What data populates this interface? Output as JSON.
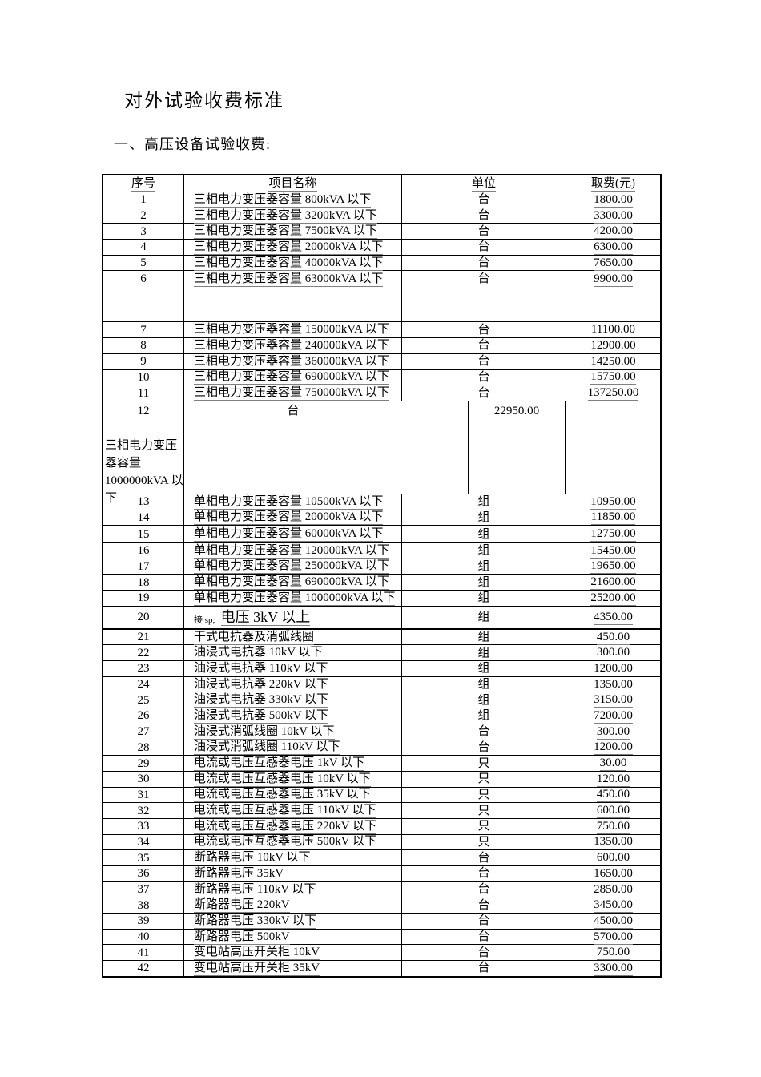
{
  "document": {
    "title": "对外试验收费标准",
    "section_heading": "一、高压设备试验收费:"
  },
  "table": {
    "headers": {
      "no": "序号",
      "name": "项目名称",
      "unit": "单位",
      "fee": "取费(元)"
    },
    "rows": [
      {
        "no": "1",
        "name": "三相电力变压器容量 800kVA 以下",
        "unit": "台",
        "fee": "1800.00"
      },
      {
        "no": "2",
        "name": "三相电力变压器容量 3200kVA 以下",
        "unit": "台",
        "fee": "3300.00"
      },
      {
        "no": "3",
        "name": "三相电力变压器容量 7500kVA 以下",
        "unit": "台",
        "fee": "4200.00"
      },
      {
        "no": "4",
        "name": "三相电力变压器容量 20000kVA 以下",
        "unit": "台",
        "fee": "6300.00"
      },
      {
        "no": "5",
        "name": "三相电力变压器容量 40000kVA 以下",
        "unit": "台",
        "fee": "7650.00"
      },
      {
        "no": "6",
        "name": "三相电力变压器容量 63000kVA 以下",
        "unit": "台",
        "fee": "9900.00"
      },
      {
        "no": "7",
        "name": "三相电力变压器容量 150000kVA 以下",
        "unit": "台",
        "fee": "11100.00"
      },
      {
        "no": "8",
        "name": "三相电力变压器容量 240000kVA 以下",
        "unit": "台",
        "fee": "12900.00"
      },
      {
        "no": "9",
        "name": "三相电力变压器容量 360000kVA 以下",
        "unit": "台",
        "fee": "14250.00"
      },
      {
        "no": "10",
        "name": "三相电力变压器容量 690000kVA 以下",
        "unit": "台",
        "fee": "15750.00"
      },
      {
        "no": "11",
        "name": "三相电力变压器容量 750000kVA 以下",
        "unit": "台",
        "fee": "137250.00"
      },
      {
        "no": "12",
        "name": "三相电力变压器容量 1000000kVA 以下",
        "unit": "台",
        "fee": "22950.00"
      },
      {
        "no": "13",
        "name": "单相电力变压器容量 10500kVA 以下",
        "unit": "组",
        "fee": "10950.00"
      },
      {
        "no": "14",
        "name": "单相电力变压器容量 20000kVA 以下",
        "unit": "组",
        "fee": "11850.00"
      },
      {
        "no": "15",
        "name": "单相电力变压器容量 60000kVA 以下",
        "unit": "组",
        "fee": "12750.00"
      },
      {
        "no": "16",
        "name": "单相电力变压器容量 120000kVA 以下",
        "unit": "组",
        "fee": "15450.00"
      },
      {
        "no": "17",
        "name": "单相电力变压器容量 250000kVA 以下",
        "unit": "组",
        "fee": "19650.00"
      },
      {
        "no": "18",
        "name": "单相电力变压器容量 690000kVA 以下",
        "unit": "组",
        "fee": "21600.00"
      },
      {
        "no": "19",
        "name": "单相电力变压器容量 1000000kVA 以下",
        "unit": "组",
        "fee": "25200.00"
      },
      {
        "no": "20",
        "name_prefix": "接 sp;",
        "name": "电压 3kV 以上",
        "unit": "组",
        "fee": "4350.00"
      },
      {
        "no": "21",
        "name": "干式电抗器及消弧线圈",
        "unit": "组",
        "fee": "450.00"
      },
      {
        "no": "22",
        "name": "油浸式电抗器 10kV 以下",
        "unit": "组",
        "fee": "300.00"
      },
      {
        "no": "23",
        "name": "油浸式电抗器 110kV 以下",
        "unit": "组",
        "fee": "1200.00"
      },
      {
        "no": "24",
        "name": "油浸式电抗器 220kV 以下",
        "unit": "组",
        "fee": "1350.00"
      },
      {
        "no": "25",
        "name": "油浸式电抗器 330kV 以下",
        "unit": "组",
        "fee": "3150.00"
      },
      {
        "no": "26",
        "name": "油浸式电抗器 500kV 以下",
        "unit": "组",
        "fee": "7200.00"
      },
      {
        "no": "27",
        "name": "油浸式消弧线圈 10kV 以下",
        "unit": "台",
        "fee": "300.00"
      },
      {
        "no": "28",
        "name": "油浸式消弧线圈 110kV 以下",
        "unit": "台",
        "fee": "1200.00"
      },
      {
        "no": "29",
        "name": "电流或电压互感器电压 1kV 以下",
        "unit": "只",
        "fee": "30.00"
      },
      {
        "no": "30",
        "name": "电流或电压互感器电压 10kV 以下",
        "unit": "只",
        "fee": "120.00"
      },
      {
        "no": "31",
        "name": "电流或电压互感器电压 35kV 以下",
        "unit": "只",
        "fee": "450.00"
      },
      {
        "no": "32",
        "name": "电流或电压互感器电压 110kV 以下",
        "unit": "只",
        "fee": "600.00"
      },
      {
        "no": "33",
        "name": "电流或电压互感器电压 220kV 以下",
        "unit": "只",
        "fee": "750.00"
      },
      {
        "no": "34",
        "name": "电流或电压互感器电压 500kV 以下",
        "unit": "只",
        "fee": "1350.00"
      },
      {
        "no": "35",
        "name": "断路器电压 10kV 以下",
        "unit": "台",
        "fee": "600.00"
      },
      {
        "no": "36",
        "name": "断路器电压 35kV",
        "unit": "台",
        "fee": "1650.00"
      },
      {
        "no": "37",
        "name": "断路器电压 110kV 以下",
        "unit": "台",
        "fee": "2850.00"
      },
      {
        "no": "38",
        "name": "断路器电压 220kV",
        "unit": "台",
        "fee": "3450.00"
      },
      {
        "no": "39",
        "name": "断路器电压 330kV 以下",
        "unit": "台",
        "fee": "4500.00"
      },
      {
        "no": "40",
        "name": "断路器电压 500kV",
        "unit": "台",
        "fee": "5700.00"
      },
      {
        "no": "41",
        "name": "变电站高压开关柜 10kV",
        "unit": "台",
        "fee": "750.00"
      },
      {
        "no": "42",
        "name": "变电站高压开关柜 35kV",
        "unit": "台",
        "fee": "3300.00"
      }
    ]
  }
}
